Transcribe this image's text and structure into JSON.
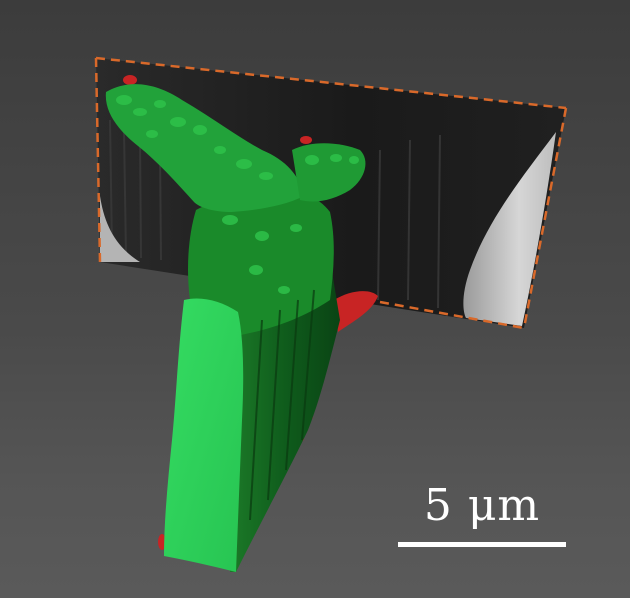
{
  "image": {
    "kind": "3D confocal surface rendering",
    "colors": {
      "background": "#474747",
      "cell_surface": "#1f8f2f",
      "cell_cut_face": "#2fd45a",
      "marker": "#c82424",
      "frame_dash": "#d9692a",
      "scale_bar": "#ffffff"
    }
  },
  "scale_bar": {
    "label": "5 μm",
    "length_um": 5
  }
}
